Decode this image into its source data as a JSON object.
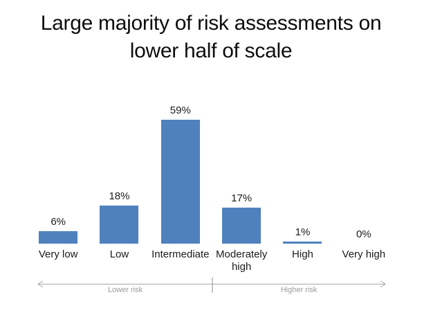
{
  "slide": {
    "title_line1": "Large majority of risk assessments on",
    "title_line2": "lower half of scale"
  },
  "chart_data": {
    "type": "bar",
    "title": "Large majority of risk assessments on lower half of scale",
    "categories": [
      "Very low",
      "Low",
      "Intermediate",
      "Moderately high",
      "High",
      "Very high"
    ],
    "values": [
      6,
      18,
      59,
      17,
      1,
      0
    ],
    "value_labels": [
      "6%",
      "18%",
      "59%",
      "17%",
      "1%",
      "0%"
    ],
    "unit": "%",
    "ylim": [
      0,
      62
    ],
    "gridlines": false,
    "data_labels": true,
    "bar_color": "#4F81BD",
    "text_color": "#1a1a1a",
    "axis_annotation": {
      "left_label": "Lower risk",
      "right_label": "Higher risk",
      "arrow_color": "#A6A6A6",
      "label_color": "#9a9a9a"
    }
  }
}
